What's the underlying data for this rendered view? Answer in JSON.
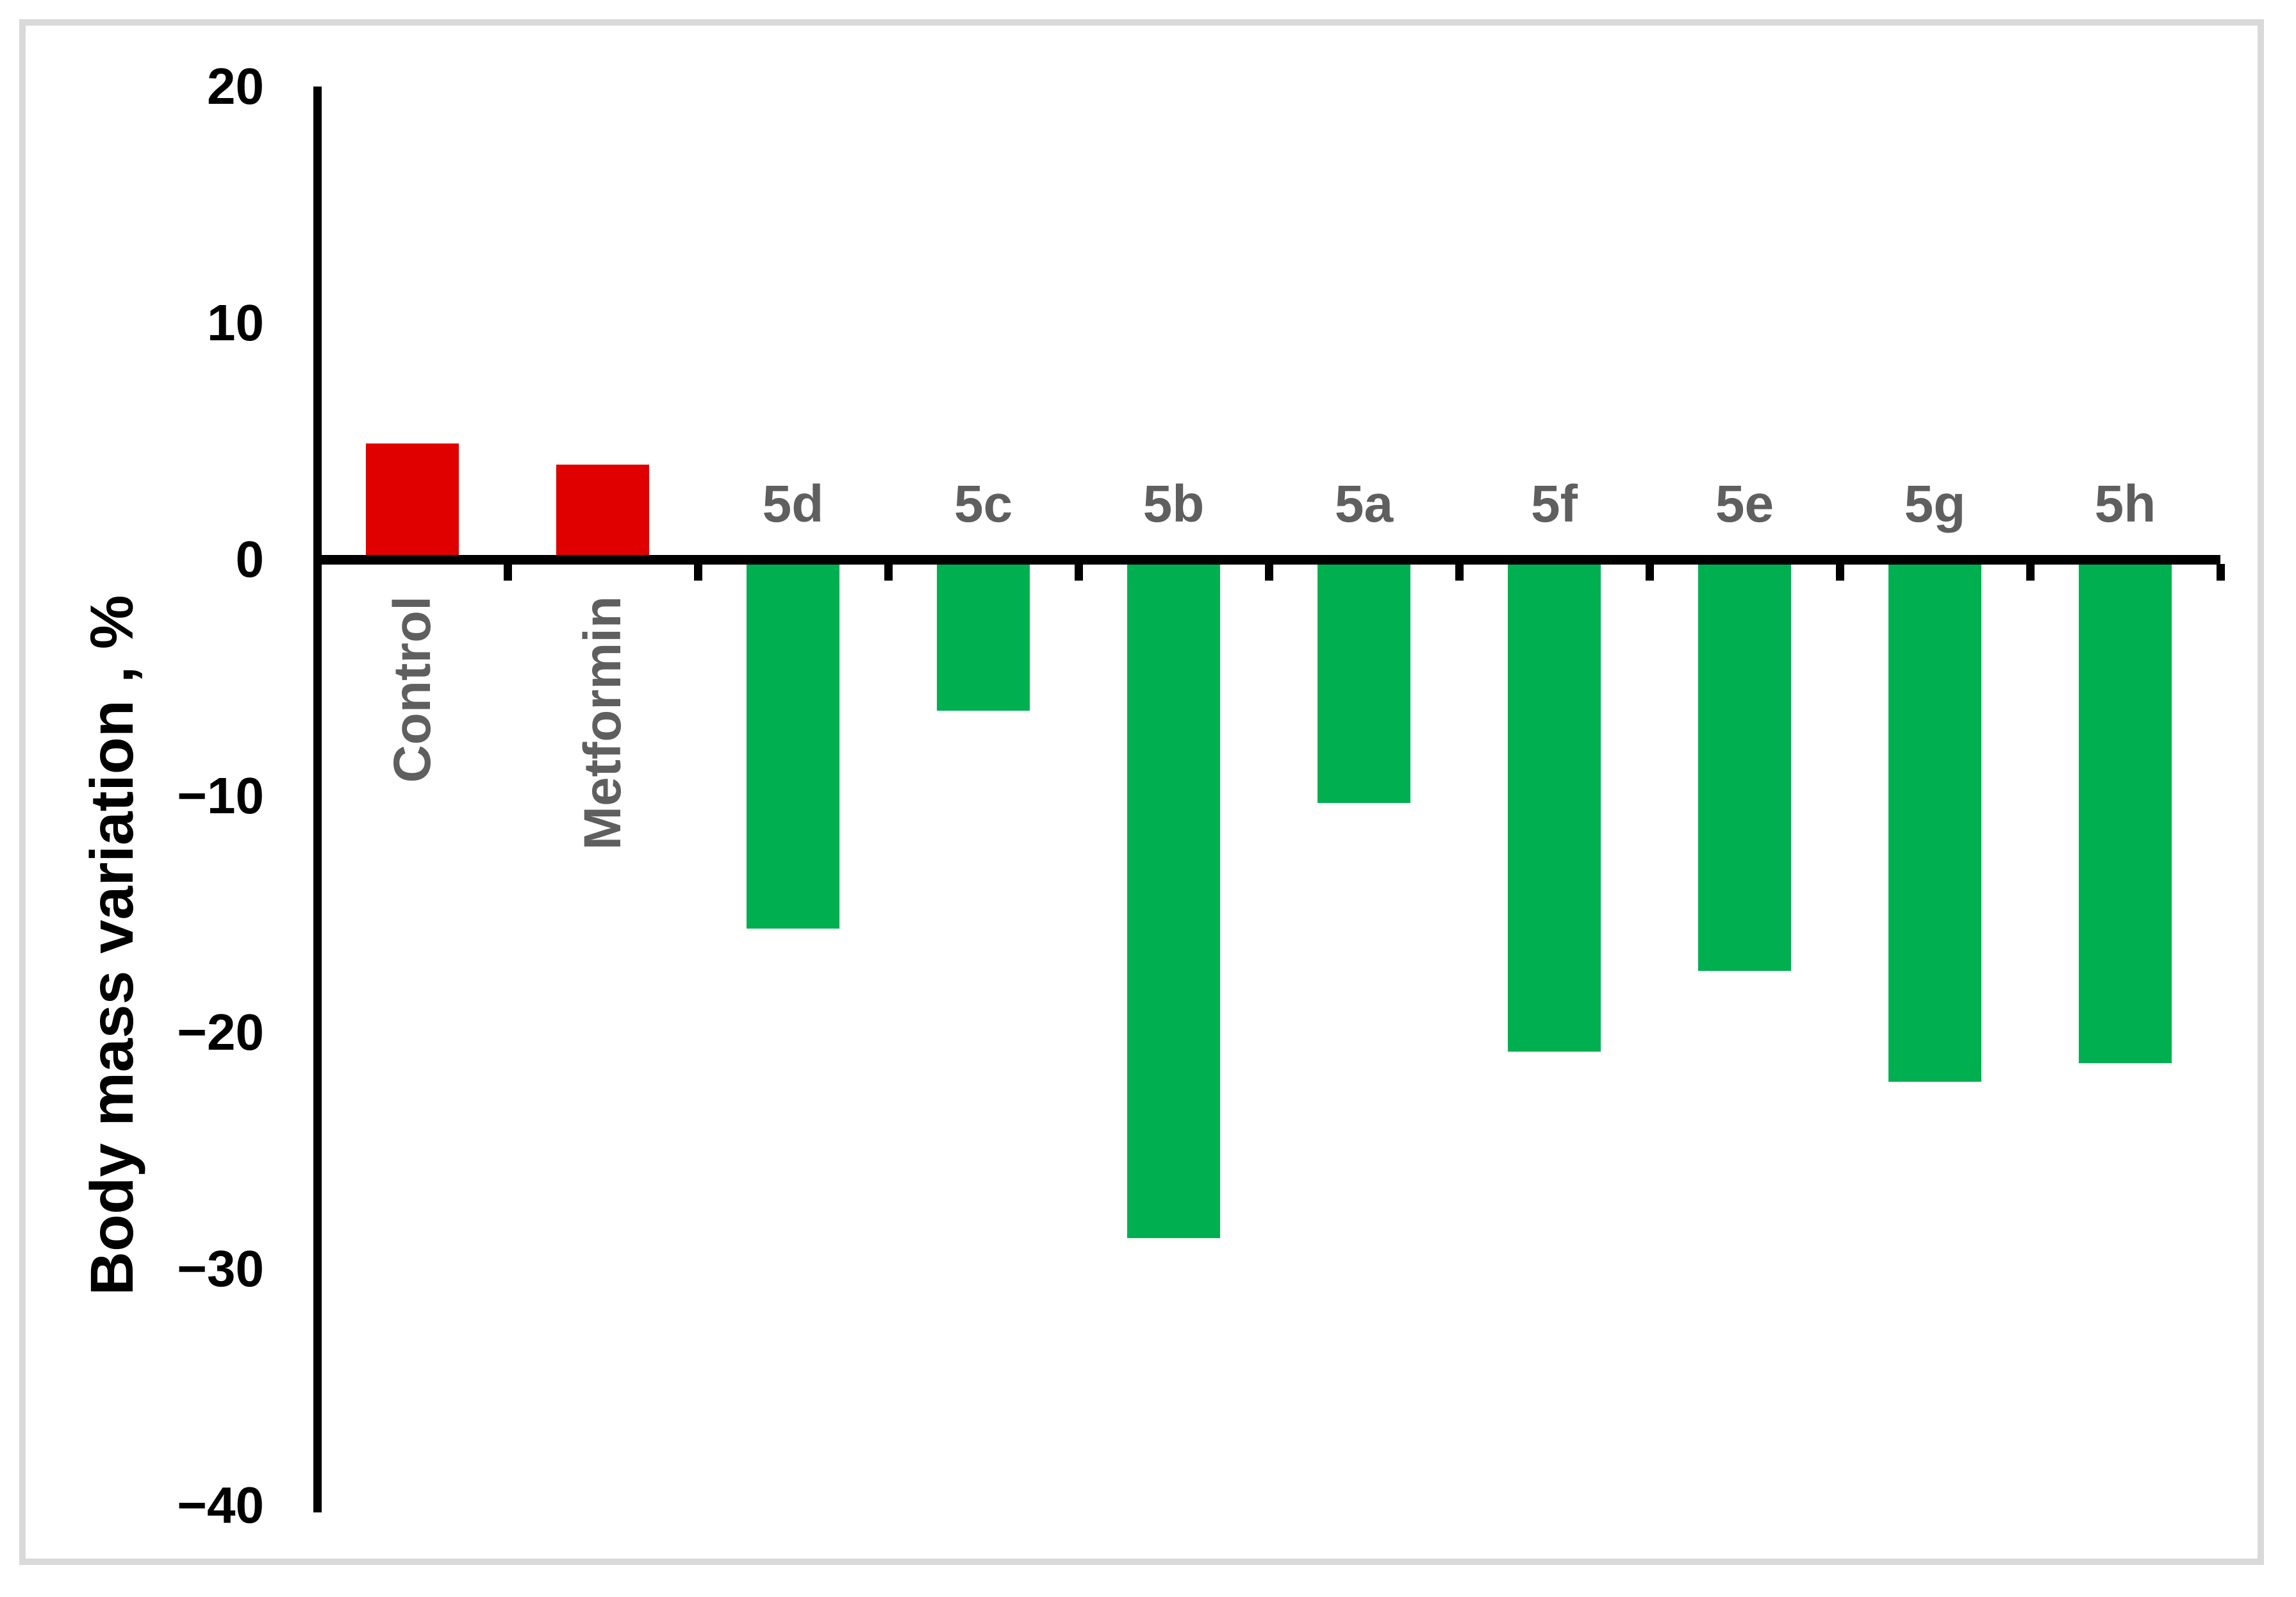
{
  "chart_data": {
    "type": "bar",
    "title": "",
    "ylabel": "Body mass variation , %",
    "xlabel": "",
    "categories": [
      "Control",
      "Metformin",
      "5d",
      "5c",
      "5b",
      "5a",
      "5f",
      "5e",
      "5g",
      "5h"
    ],
    "values": [
      4.9,
      4.0,
      -15.6,
      -6.4,
      -28.7,
      -10.3,
      -20.8,
      -17.4,
      -22.1,
      -21.3
    ],
    "bar_colors": [
      "#e00000",
      "#e00000",
      "#00b050",
      "#00b050",
      "#00b050",
      "#00b050",
      "#00b050",
      "#00b050",
      "#00b050",
      "#00b050"
    ],
    "ylim": [
      -40,
      20
    ],
    "yticks": [
      {
        "label": "20",
        "value": 20
      },
      {
        "label": "10",
        "value": 10
      },
      {
        "label": "0",
        "value": 0
      },
      {
        "label": "−10",
        "value": -10
      },
      {
        "label": "−20",
        "value": -20
      },
      {
        "label": "−30",
        "value": -30
      },
      {
        "label": "−40",
        "value": -40
      }
    ],
    "grid": false,
    "legend": "none",
    "colors": {
      "positive_bar": "#e00000",
      "negative_bar": "#00b050",
      "axis": "#000000",
      "category_label": "#5f5f5f",
      "frame_border": "#d9d9d9",
      "background": "#ffffff"
    }
  }
}
